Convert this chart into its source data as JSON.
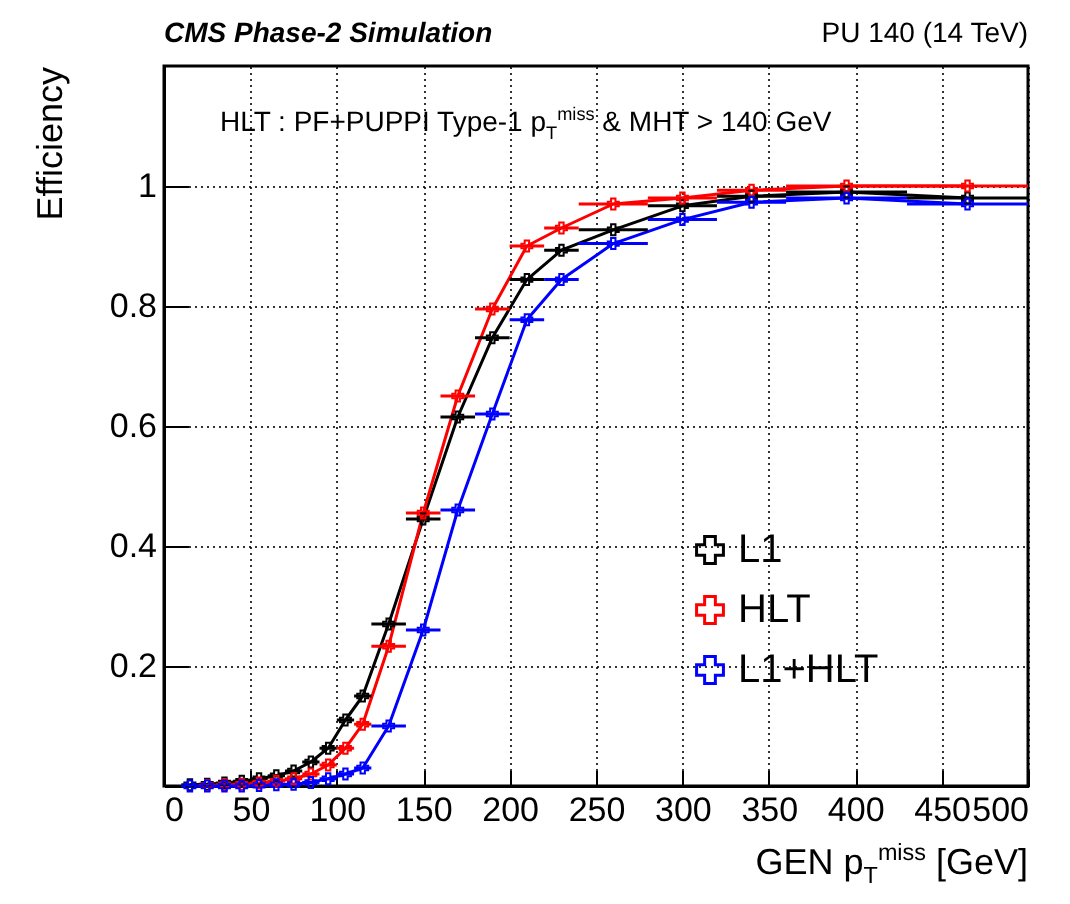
{
  "chart_data": {
    "type": "line",
    "title": "CMS Phase-2 Simulation",
    "subtitle": "PU 140 (14 TeV)",
    "xlabel": "GEN p$_{T}$$^{miss}$ [GeV]",
    "ylabel": "Efficiency",
    "annotations": [
      "HLT : PF+PUPPI Type-1 p$_{T}$$^{miss}$ & MHT > 140 GeV"
    ],
    "x": [
      15,
      25,
      35,
      45,
      55,
      65,
      75,
      85,
      95,
      105,
      115,
      130,
      150,
      170,
      190,
      210,
      230,
      260,
      300,
      340,
      395,
      465
    ],
    "series": [
      {
        "name": "L1",
        "color": "#000000",
        "values": [
          0.002,
          0.003,
          0.005,
          0.008,
          0.012,
          0.017,
          0.025,
          0.04,
          0.063,
          0.11,
          0.15,
          0.27,
          0.445,
          0.615,
          0.747,
          0.844,
          0.893,
          0.927,
          0.967,
          0.983,
          0.99,
          0.98
        ],
        "xerrors": [
          5,
          5,
          5,
          5,
          5,
          5,
          5,
          5,
          5,
          5,
          5,
          10,
          10,
          10,
          10,
          10,
          10,
          20,
          20,
          20,
          35,
          35
        ]
      },
      {
        "name": "HLT",
        "color": "#ff0000",
        "values": [
          null,
          0.001,
          0.002,
          0.003,
          0.005,
          0.008,
          0.012,
          0.02,
          0.035,
          0.063,
          0.103,
          0.233,
          0.455,
          0.65,
          0.795,
          0.9,
          0.93,
          0.97,
          0.98,
          0.993,
          1.0,
          1.0
        ],
        "xerrors": [
          null,
          5,
          5,
          5,
          5,
          5,
          5,
          5,
          5,
          5,
          5,
          10,
          10,
          10,
          10,
          10,
          10,
          20,
          20,
          20,
          35,
          35
        ]
      },
      {
        "name": "L1+HLT",
        "color": "#0000ff",
        "values": [
          0,
          0,
          0,
          0,
          0.001,
          0.002,
          0.003,
          0.006,
          0.012,
          0.02,
          0.03,
          0.1,
          0.26,
          0.46,
          0.62,
          0.777,
          0.844,
          0.904,
          0.944,
          0.973,
          0.98,
          0.97
        ],
        "xerrors": [
          5,
          5,
          5,
          5,
          5,
          5,
          5,
          5,
          5,
          5,
          5,
          10,
          10,
          10,
          10,
          10,
          10,
          20,
          20,
          20,
          35,
          35
        ]
      }
    ],
    "xlim": [
      0,
      500
    ],
    "ylim": [
      0,
      1.2
    ],
    "xticks": [
      0,
      50,
      100,
      150,
      200,
      250,
      300,
      350,
      400,
      450,
      500
    ],
    "yticks": [
      0.2,
      0.4,
      0.6,
      0.8,
      1
    ],
    "grid": true,
    "legend": "bottom right",
    "marker": "cross",
    "line_style": "solid"
  }
}
